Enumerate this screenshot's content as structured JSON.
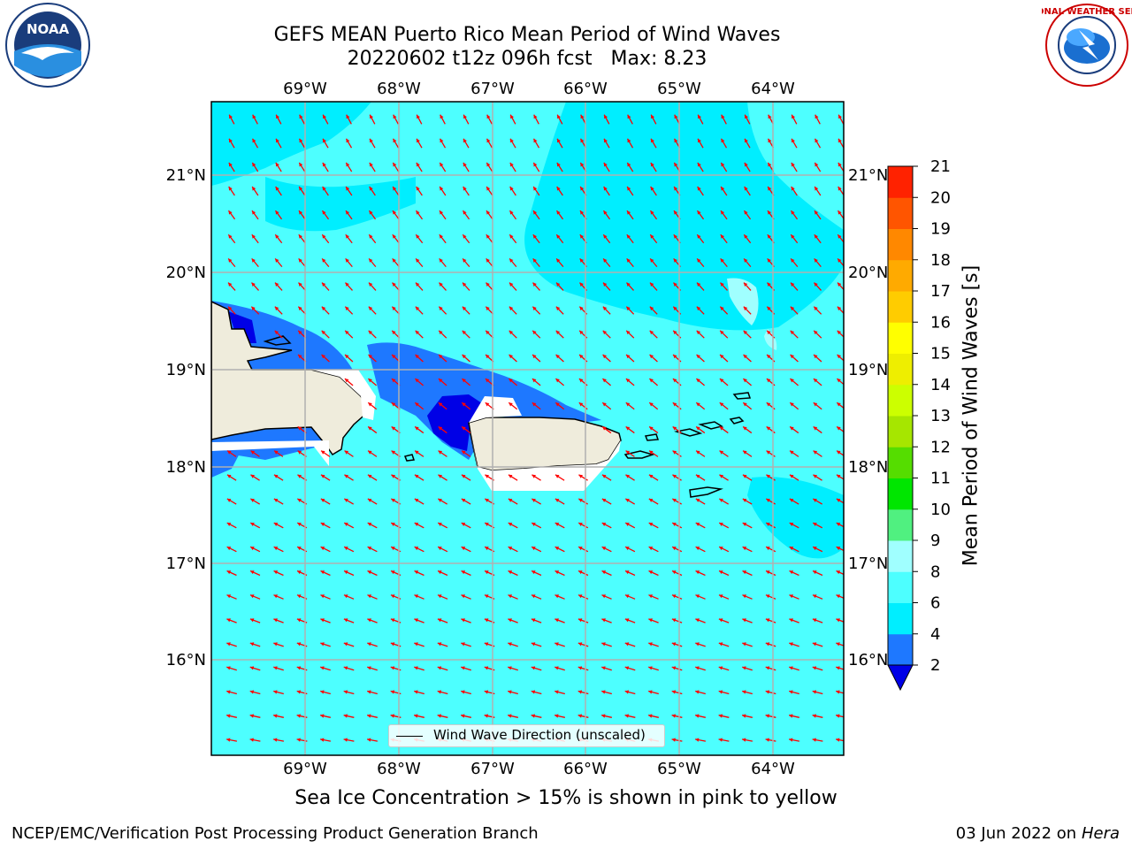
{
  "header": {
    "title_line1": "GEFS MEAN Puerto Rico Mean Period of Wind Waves",
    "title_line2": "20220602 t12z 096h fcst   Max: 8.23"
  },
  "logos": {
    "left": "noaa-logo",
    "left_text": "NOAA",
    "right": "nws-logo",
    "right_text": "NATIONAL WEATHER SERVICE"
  },
  "map": {
    "lon_labels": [
      "69°W",
      "68°W",
      "67°W",
      "66°W",
      "65°W",
      "64°W"
    ],
    "lat_labels": [
      "21°N",
      "20°N",
      "19°N",
      "18°N",
      "17°N",
      "16°N"
    ],
    "land_color": "#efecdc",
    "arrow_color": "#ff0000",
    "legend_label": "Wind Wave Direction (unscaled)"
  },
  "colorbar": {
    "title": "Mean Period of Wind Waves [s]",
    "ticks": [
      "2",
      "4",
      "6",
      "8",
      "9",
      "10",
      "11",
      "12",
      "13",
      "14",
      "15",
      "16",
      "17",
      "18",
      "19",
      "20",
      "21"
    ],
    "colors": [
      "#0000e6",
      "#1e78ff",
      "#00eeff",
      "#4dffff",
      "#a0ffff",
      "#50f080",
      "#00e600",
      "#55dd00",
      "#a6e600",
      "#ccff00",
      "#eeee00",
      "#ffff00",
      "#ffcc00",
      "#ffaa00",
      "#ff8800",
      "#ff5500",
      "#ff2200",
      "#ff0000"
    ]
  },
  "caption": "Sea Ice Concentration > 15% is shown in pink to yellow",
  "footer": {
    "left": "NCEP/EMC/Verification Post Processing Product Generation Branch",
    "date": "03 Jun 2022 on",
    "host": "Hera"
  }
}
